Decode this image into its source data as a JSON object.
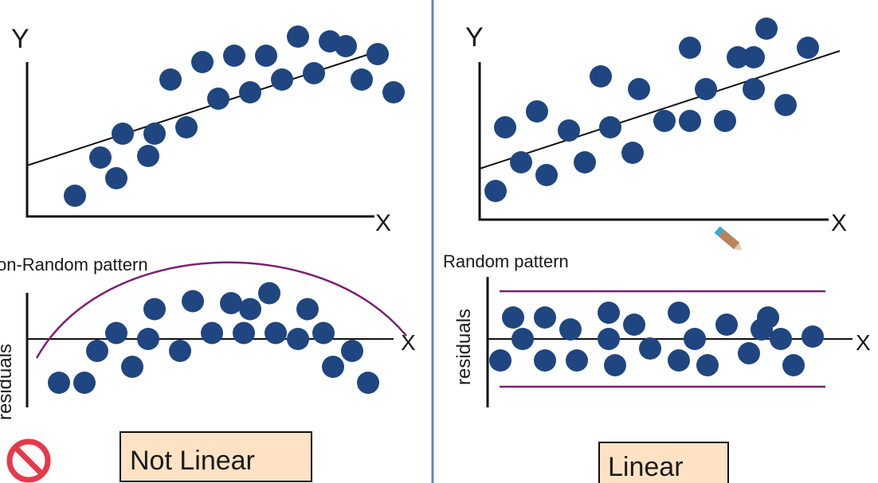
{
  "left": {
    "scatter": {
      "y_axis_label": "Y",
      "x_axis_label": "X",
      "fit": {
        "start": [
          0,
          3.2
        ],
        "end": [
          11.2,
          10.5
        ]
      },
      "points": [
        [
          1.5,
          1.3
        ],
        [
          2.3,
          3.7
        ],
        [
          2.8,
          2.4
        ],
        [
          3.0,
          5.2
        ],
        [
          3.8,
          3.8
        ],
        [
          4.0,
          5.2
        ],
        [
          4.5,
          8.6
        ],
        [
          5.0,
          5.6
        ],
        [
          5.5,
          9.7
        ],
        [
          6.0,
          7.4
        ],
        [
          6.5,
          10.1
        ],
        [
          7.0,
          7.8
        ],
        [
          7.5,
          10.1
        ],
        [
          8.0,
          8.6
        ],
        [
          8.5,
          11.3
        ],
        [
          9.0,
          9.0
        ],
        [
          9.5,
          11.0
        ],
        [
          10.0,
          10.7
        ],
        [
          10.5,
          8.6
        ],
        [
          11.0,
          10.2
        ],
        [
          11.5,
          7.8
        ]
      ]
    },
    "residuals": {
      "pattern_label": "on-Random pattern",
      "y_axis_label": "residuals",
      "x_axis_label": "X",
      "points": [
        [
          1.0,
          -1.1
        ],
        [
          1.8,
          -1.1
        ],
        [
          2.2,
          -0.3
        ],
        [
          2.8,
          0.15
        ],
        [
          3.3,
          -0.7
        ],
        [
          3.8,
          0.0
        ],
        [
          4.0,
          0.75
        ],
        [
          4.8,
          -0.3
        ],
        [
          5.2,
          0.95
        ],
        [
          5.8,
          0.15
        ],
        [
          6.4,
          0.9
        ],
        [
          6.8,
          0.15
        ],
        [
          7.0,
          0.75
        ],
        [
          7.6,
          1.15
        ],
        [
          7.8,
          0.15
        ],
        [
          8.5,
          0.0
        ],
        [
          8.8,
          0.75
        ],
        [
          9.3,
          0.15
        ],
        [
          9.6,
          -0.7
        ],
        [
          10.2,
          -0.3
        ],
        [
          10.7,
          -1.1
        ]
      ]
    },
    "verdict": "Not Linear",
    "no_icon": "no-entry-sign"
  },
  "right": {
    "scatter": {
      "y_axis_label": "Y",
      "x_axis_label": "X",
      "fit": {
        "start": [
          0,
          1.6
        ],
        "end": [
          11.3,
          5.3
        ]
      },
      "points": [
        [
          0.5,
          0.9
        ],
        [
          0.8,
          2.9
        ],
        [
          1.3,
          1.8
        ],
        [
          1.8,
          3.4
        ],
        [
          2.1,
          1.4
        ],
        [
          2.8,
          2.8
        ],
        [
          3.3,
          1.8
        ],
        [
          3.8,
          4.5
        ],
        [
          4.1,
          2.9
        ],
        [
          4.8,
          2.1
        ],
        [
          5.0,
          4.1
        ],
        [
          5.8,
          3.1
        ],
        [
          6.6,
          5.4
        ],
        [
          6.6,
          3.1
        ],
        [
          7.1,
          4.1
        ],
        [
          7.7,
          3.1
        ],
        [
          8.1,
          5.1
        ],
        [
          8.6,
          5.1
        ],
        [
          8.6,
          4.1
        ],
        [
          9.0,
          6.0
        ],
        [
          9.6,
          3.6
        ],
        [
          10.3,
          5.4
        ]
      ]
    },
    "residuals": {
      "pattern_label": "Random pattern",
      "y_axis_label": "residuals",
      "x_axis_label": "X",
      "points": [
        [
          0.4,
          -0.45
        ],
        [
          0.8,
          0.45
        ],
        [
          1.1,
          0.0
        ],
        [
          1.8,
          0.45
        ],
        [
          1.8,
          -0.45
        ],
        [
          2.6,
          0.2
        ],
        [
          2.8,
          -0.45
        ],
        [
          3.8,
          0.55
        ],
        [
          3.8,
          0.0
        ],
        [
          4.0,
          -0.55
        ],
        [
          4.6,
          0.3
        ],
        [
          5.1,
          -0.2
        ],
        [
          6.0,
          0.55
        ],
        [
          6.0,
          -0.45
        ],
        [
          6.5,
          0.0
        ],
        [
          6.9,
          -0.55
        ],
        [
          7.5,
          0.3
        ],
        [
          8.2,
          -0.3
        ],
        [
          8.6,
          0.2
        ],
        [
          8.8,
          0.45
        ],
        [
          9.2,
          0.0
        ],
        [
          9.6,
          -0.55
        ],
        [
          10.2,
          0.05
        ]
      ]
    },
    "verdict": "Linear"
  }
}
